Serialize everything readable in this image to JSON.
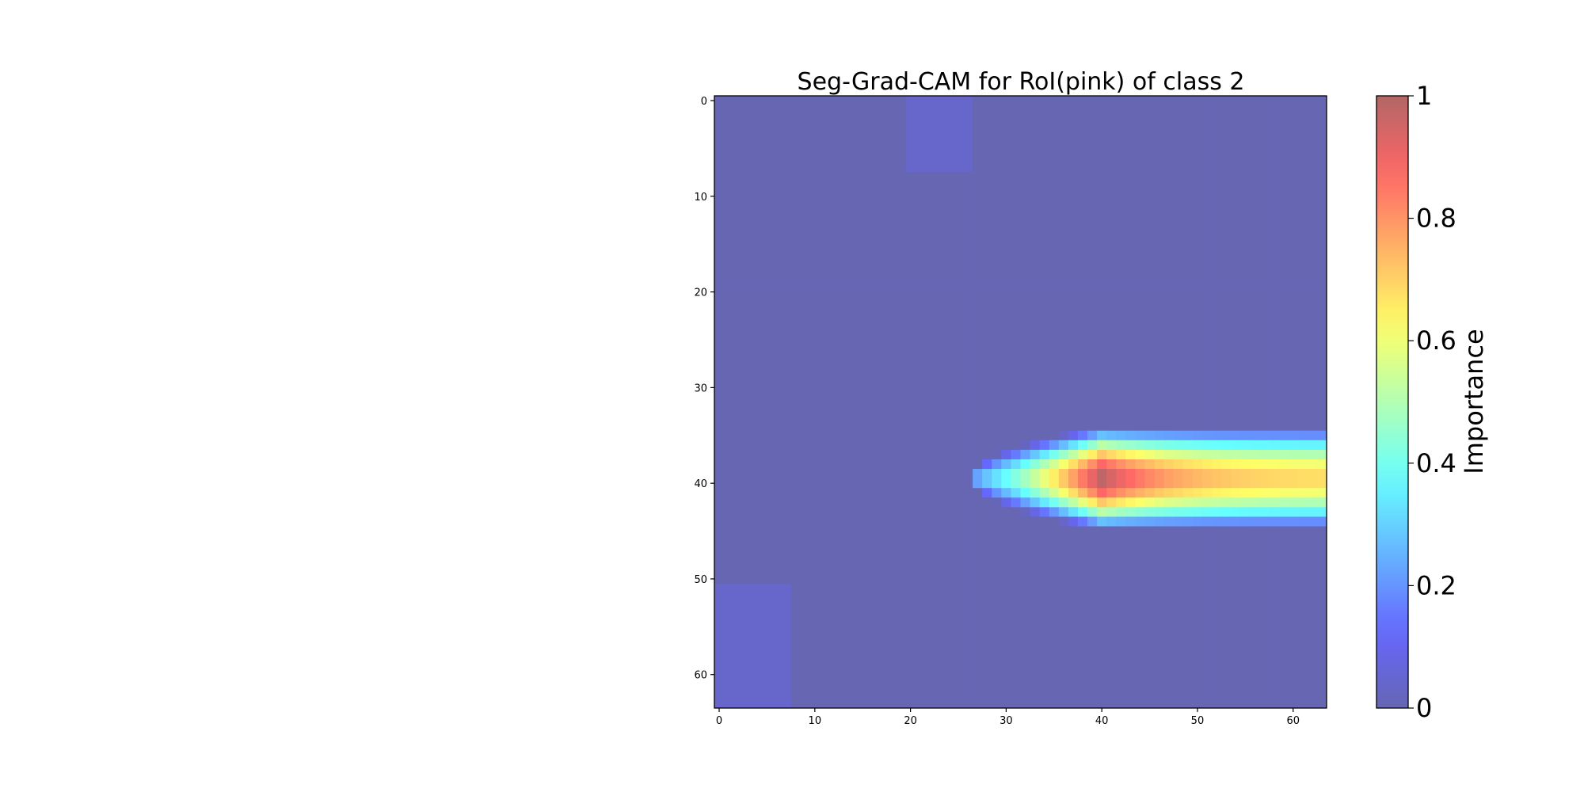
{
  "chart_data": {
    "type": "heatmap",
    "title": "Seg-Grad-CAM for RoI(pink) of class 2",
    "xlabel": "",
    "ylabel": "",
    "grid": false,
    "x_range": [
      -0.5,
      63.5
    ],
    "y_range": [
      -0.5,
      63.5
    ],
    "x_ticks": [
      0,
      10,
      20,
      30,
      40,
      50,
      60
    ],
    "y_ticks": [
      0,
      10,
      20,
      30,
      40,
      50,
      60
    ],
    "colormap": "jet",
    "alpha": 0.6,
    "grid_size": [
      64,
      64
    ],
    "colorbar": {
      "label": "Importance",
      "range": [
        0,
        1
      ],
      "ticks": [
        0,
        0.2,
        0.4,
        0.6,
        0.8,
        1
      ],
      "tick_labels": [
        "0",
        "0.2",
        "0.4",
        "0.6",
        "0.8",
        "1"
      ]
    },
    "features": [
      {
        "name": "main-blob",
        "x_start": 26,
        "x_peak": 40,
        "x_end": 63,
        "y_center": 39.5,
        "max_half_height": 5.5,
        "peak": 1.0,
        "tail": 0.68
      },
      {
        "name": "top-patch",
        "x": [
          20,
          26
        ],
        "y": [
          0,
          7
        ],
        "value": 0.04
      },
      {
        "name": "bottom-left-patch",
        "x": [
          0,
          7
        ],
        "y": [
          51,
          63
        ],
        "value": 0.04
      }
    ]
  }
}
